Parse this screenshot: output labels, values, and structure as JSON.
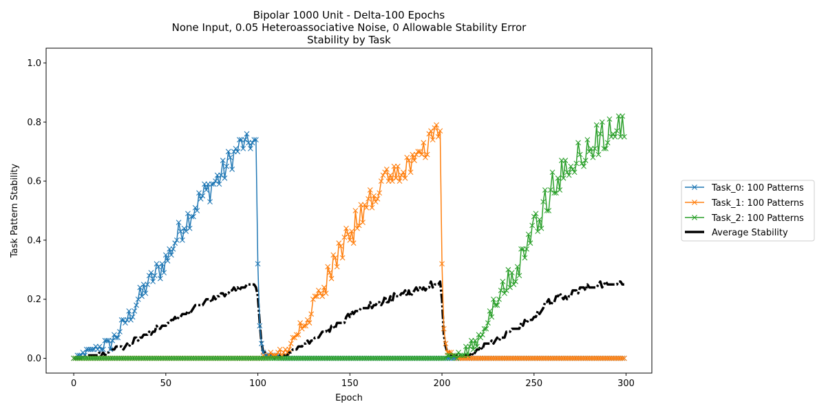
{
  "chart_data": {
    "type": "line",
    "title_lines": [
      "Bipolar 1000 Unit - Delta-100 Epochs",
      "None Input, 0.05 Heteroassociative Noise, 0 Allowable Stability Error",
      "Stability by Task"
    ],
    "xlabel": "Epoch",
    "ylabel": "Task Pattern Stability",
    "xlim": [
      -15,
      314
    ],
    "ylim": [
      -0.05,
      1.05
    ],
    "xticks": [
      0,
      50,
      100,
      150,
      200,
      250,
      300
    ],
    "yticks": [
      0.0,
      0.2,
      0.4,
      0.6,
      0.8,
      1.0
    ],
    "legend_position": "outside-right",
    "series": [
      {
        "name": "Task_0: 100 Patterns",
        "color": "#1f77b4",
        "marker": "x",
        "keypoints": [
          [
            0,
            0.0
          ],
          [
            10,
            0.03
          ],
          [
            20,
            0.05
          ],
          [
            30,
            0.14
          ],
          [
            40,
            0.25
          ],
          [
            50,
            0.33
          ],
          [
            60,
            0.46
          ],
          [
            70,
            0.55
          ],
          [
            80,
            0.62
          ],
          [
            90,
            0.72
          ],
          [
            99,
            0.73
          ],
          [
            100,
            0.32
          ],
          [
            101,
            0.11
          ],
          [
            102,
            0.05
          ],
          [
            103,
            0.02
          ],
          [
            105,
            0.01
          ],
          [
            110,
            0.01
          ],
          [
            114,
            0.0
          ],
          [
            299,
            0.0
          ]
        ],
        "amp": [
          0.0,
          0.01,
          0.025,
          0.03,
          0.035,
          0.045,
          0.05,
          0.045,
          0.05,
          0.04,
          0.02,
          0.0,
          0.0,
          0.0,
          0.0,
          0.005,
          0.005,
          0.0,
          0.0
        ]
      },
      {
        "name": "Task_1: 100 Patterns",
        "color": "#ff7f0e",
        "marker": "x",
        "keypoints": [
          [
            0,
            0.0
          ],
          [
            99,
            0.0
          ],
          [
            100,
            0.0
          ],
          [
            115,
            0.02
          ],
          [
            120,
            0.08
          ],
          [
            125,
            0.12
          ],
          [
            130,
            0.18
          ],
          [
            140,
            0.3
          ],
          [
            150,
            0.42
          ],
          [
            160,
            0.52
          ],
          [
            170,
            0.6
          ],
          [
            180,
            0.64
          ],
          [
            190,
            0.7
          ],
          [
            197,
            0.76
          ],
          [
            199,
            0.78
          ],
          [
            200,
            0.32
          ],
          [
            201,
            0.1
          ],
          [
            202,
            0.05
          ],
          [
            203,
            0.02
          ],
          [
            206,
            0.01
          ],
          [
            208,
            0.0
          ],
          [
            299,
            0.0
          ]
        ],
        "amp": [
          0.0,
          0.0,
          0.0,
          0.015,
          0.01,
          0.03,
          0.035,
          0.045,
          0.05,
          0.045,
          0.04,
          0.035,
          0.04,
          0.03,
          0.02,
          0.0,
          0.0,
          0.0,
          0.0,
          0.005,
          0.0,
          0.0
        ]
      },
      {
        "name": "Task_2: 100 Patterns",
        "color": "#2ca02c",
        "marker": "x",
        "keypoints": [
          [
            0,
            0.0
          ],
          [
            199,
            0.0
          ],
          [
            210,
            0.01
          ],
          [
            215,
            0.03
          ],
          [
            220,
            0.08
          ],
          [
            225,
            0.14
          ],
          [
            230,
            0.2
          ],
          [
            240,
            0.3
          ],
          [
            250,
            0.43
          ],
          [
            260,
            0.58
          ],
          [
            270,
            0.66
          ],
          [
            280,
            0.72
          ],
          [
            290,
            0.76
          ],
          [
            299,
            0.78
          ]
        ],
        "amp": [
          0.0,
          0.0,
          0.01,
          0.02,
          0.03,
          0.035,
          0.04,
          0.05,
          0.06,
          0.055,
          0.05,
          0.05,
          0.055,
          0.045
        ]
      },
      {
        "name": "Average Stability",
        "color": "#000000",
        "marker": "none",
        "keypoints": [
          [
            0,
            0.0
          ],
          [
            10,
            0.01
          ],
          [
            20,
            0.02
          ],
          [
            30,
            0.05
          ],
          [
            40,
            0.085
          ],
          [
            50,
            0.115
          ],
          [
            60,
            0.15
          ],
          [
            70,
            0.185
          ],
          [
            80,
            0.21
          ],
          [
            90,
            0.24
          ],
          [
            99,
            0.245
          ],
          [
            100,
            0.21
          ],
          [
            101,
            0.12
          ],
          [
            102,
            0.05
          ],
          [
            103,
            0.02
          ],
          [
            105,
            0.01
          ],
          [
            110,
            0.005
          ],
          [
            115,
            0.01
          ],
          [
            120,
            0.03
          ],
          [
            130,
            0.06
          ],
          [
            140,
            0.1
          ],
          [
            150,
            0.14
          ],
          [
            160,
            0.175
          ],
          [
            170,
            0.2
          ],
          [
            180,
            0.215
          ],
          [
            190,
            0.235
          ],
          [
            197,
            0.26
          ],
          [
            199,
            0.26
          ],
          [
            200,
            0.2
          ],
          [
            201,
            0.08
          ],
          [
            202,
            0.04
          ],
          [
            203,
            0.02
          ],
          [
            205,
            0.01
          ],
          [
            210,
            0.005
          ],
          [
            215,
            0.01
          ],
          [
            220,
            0.03
          ],
          [
            230,
            0.065
          ],
          [
            240,
            0.1
          ],
          [
            250,
            0.145
          ],
          [
            260,
            0.195
          ],
          [
            270,
            0.22
          ],
          [
            280,
            0.24
          ],
          [
            290,
            0.255
          ],
          [
            299,
            0.26
          ]
        ],
        "amp": [
          0.0,
          0.005,
          0.006,
          0.008,
          0.008,
          0.01,
          0.012,
          0.012,
          0.012,
          0.012,
          0.008,
          0.0,
          0.0,
          0.0,
          0.0,
          0.002,
          0.002,
          0.003,
          0.005,
          0.006,
          0.01,
          0.012,
          0.012,
          0.012,
          0.012,
          0.012,
          0.008,
          0.008,
          0.0,
          0.0,
          0.0,
          0.0,
          0.002,
          0.002,
          0.003,
          0.005,
          0.008,
          0.01,
          0.012,
          0.012,
          0.012,
          0.012,
          0.012,
          0.01
        ]
      }
    ]
  }
}
